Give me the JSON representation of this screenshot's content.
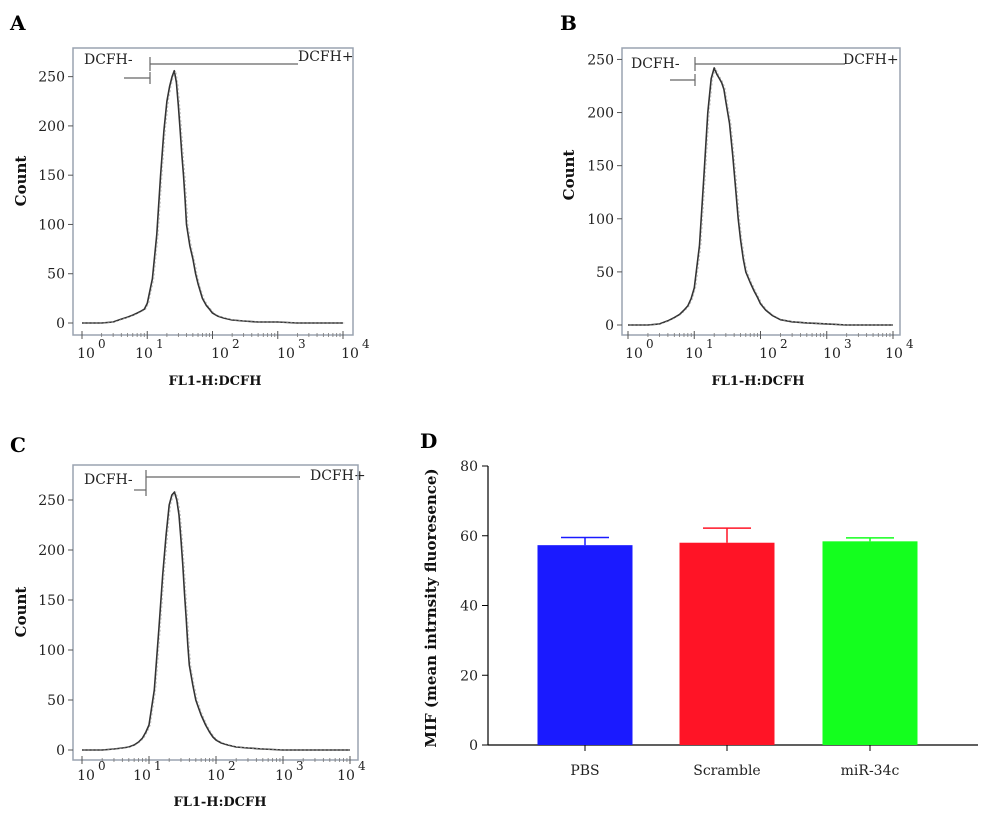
{
  "chart_data": [
    {
      "panel": "A",
      "type": "line",
      "ylabel": "Count",
      "xlabel": "FL1-H:DCFH",
      "x_scale": "log",
      "xlim": [
        1,
        10000
      ],
      "ylim": [
        0,
        275
      ],
      "y_ticks": [
        0,
        50,
        100,
        150,
        200,
        250
      ],
      "x_ticks": [
        {
          "base": "10",
          "exp": "0"
        },
        {
          "base": "10",
          "exp": "1"
        },
        {
          "base": "10",
          "exp": "2"
        },
        {
          "base": "10",
          "exp": "3"
        },
        {
          "base": "10",
          "exp": "4"
        }
      ],
      "gate_neg_label": "DCFH-",
      "gate_pos_label": "DCFH+",
      "gate_threshold": 8,
      "series": [
        {
          "x": [
            1,
            2,
            3,
            4,
            5,
            6,
            7,
            8,
            9,
            10,
            12,
            14,
            16,
            18,
            20,
            22,
            24,
            26,
            28,
            30,
            32,
            34,
            36,
            38,
            40,
            45,
            50,
            55,
            60,
            70,
            80,
            90,
            100,
            120,
            150,
            200,
            300,
            500,
            1000,
            2000,
            10000
          ],
          "values": [
            0,
            0,
            1,
            4,
            6,
            8,
            10,
            12,
            14,
            20,
            45,
            90,
            150,
            195,
            225,
            240,
            250,
            256,
            244,
            220,
            195,
            170,
            150,
            125,
            100,
            78,
            65,
            50,
            40,
            25,
            18,
            14,
            10,
            7,
            5,
            3,
            2,
            1,
            1,
            0,
            0
          ]
        }
      ]
    },
    {
      "panel": "B",
      "type": "line",
      "ylabel": "Count",
      "xlabel": "FL1-H:DCFH",
      "x_scale": "log",
      "xlim": [
        1,
        10000
      ],
      "ylim": [
        0,
        260
      ],
      "y_ticks": [
        0,
        50,
        100,
        150,
        200,
        250
      ],
      "x_ticks": [
        {
          "base": "10",
          "exp": "0"
        },
        {
          "base": "10",
          "exp": "1"
        },
        {
          "base": "10",
          "exp": "2"
        },
        {
          "base": "10",
          "exp": "3"
        },
        {
          "base": "10",
          "exp": "4"
        }
      ],
      "gate_neg_label": "DCFH-",
      "gate_pos_label": "DCFH+",
      "gate_threshold": 8,
      "series": [
        {
          "x": [
            1,
            2,
            3,
            4,
            5,
            6,
            7,
            8,
            9,
            10,
            12,
            14,
            16,
            18,
            20,
            22,
            24,
            26,
            28,
            30,
            34,
            38,
            42,
            46,
            50,
            55,
            60,
            70,
            80,
            90,
            100,
            120,
            150,
            200,
            300,
            500,
            1000,
            2000,
            10000
          ],
          "values": [
            0,
            0,
            1,
            4,
            7,
            10,
            14,
            18,
            25,
            35,
            75,
            140,
            200,
            232,
            242,
            236,
            232,
            228,
            222,
            210,
            190,
            160,
            130,
            100,
            80,
            62,
            50,
            40,
            32,
            26,
            20,
            14,
            9,
            5,
            3,
            2,
            1,
            0,
            0
          ]
        }
      ]
    },
    {
      "panel": "C",
      "type": "line",
      "ylabel": "Count",
      "xlabel": "FL1-H:DCFH",
      "x_scale": "log",
      "xlim": [
        1,
        10000
      ],
      "ylim": [
        0,
        280
      ],
      "y_ticks": [
        0,
        50,
        100,
        150,
        200,
        250
      ],
      "x_ticks": [
        {
          "base": "10",
          "exp": "0"
        },
        {
          "base": "10",
          "exp": "1"
        },
        {
          "base": "10",
          "exp": "2"
        },
        {
          "base": "10",
          "exp": "3"
        },
        {
          "base": "10",
          "exp": "4"
        }
      ],
      "gate_neg_label": "DCFH-",
      "gate_pos_label": "DCFH+",
      "gate_threshold": 8,
      "series": [
        {
          "x": [
            1,
            2,
            3,
            4,
            5,
            6,
            7,
            8,
            9,
            10,
            12,
            14,
            16,
            18,
            20,
            22,
            24,
            26,
            28,
            30,
            32,
            34,
            36,
            38,
            40,
            45,
            50,
            55,
            60,
            70,
            80,
            90,
            100,
            120,
            150,
            200,
            300,
            500,
            1000,
            2000,
            10000
          ],
          "values": [
            0,
            0,
            1,
            2,
            3,
            5,
            8,
            12,
            18,
            25,
            60,
            120,
            175,
            215,
            245,
            255,
            258,
            250,
            235,
            210,
            185,
            155,
            130,
            105,
            85,
            65,
            50,
            42,
            35,
            25,
            18,
            13,
            10,
            7,
            5,
            3,
            2,
            1,
            0,
            0,
            0
          ]
        }
      ]
    },
    {
      "panel": "D",
      "type": "bar",
      "ylabel": "MIF (mean intrnsity fluoresence)",
      "xlabel": "",
      "categories": [
        "PBS",
        "Scramble",
        "miR-34c"
      ],
      "values": [
        57.3,
        58.0,
        58.4
      ],
      "errors": [
        2.2,
        4.2,
        1.0
      ],
      "colors": [
        "#1a1aff",
        "#ff1426",
        "#14ff1e"
      ],
      "ylim": [
        0,
        80
      ],
      "y_ticks": [
        0,
        20,
        40,
        60,
        80
      ]
    }
  ]
}
